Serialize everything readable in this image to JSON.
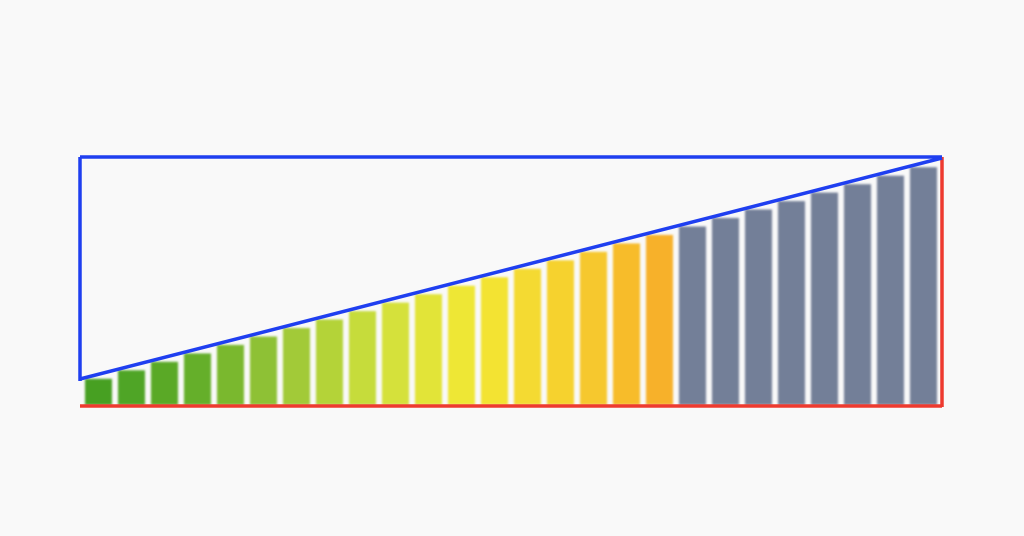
{
  "diagram": {
    "bar_count": 26,
    "colors": {
      "background": "#f9f9f9",
      "outline_top_left": "#1f3ff0",
      "outline_bottom_right": "#ee3a2f",
      "diagonal": "#1f3ff0",
      "bar_gradient": [
        "#46a022",
        "#62ad2a",
        "#9cc737",
        "#cfe03c",
        "#f2e834",
        "#f6d12f",
        "#f7b12a"
      ],
      "bar_gray": "#737f98",
      "bar_gap": "#ffffff"
    },
    "color_segments": {
      "gradient_bars": 18,
      "gray_bars": 8
    }
  }
}
